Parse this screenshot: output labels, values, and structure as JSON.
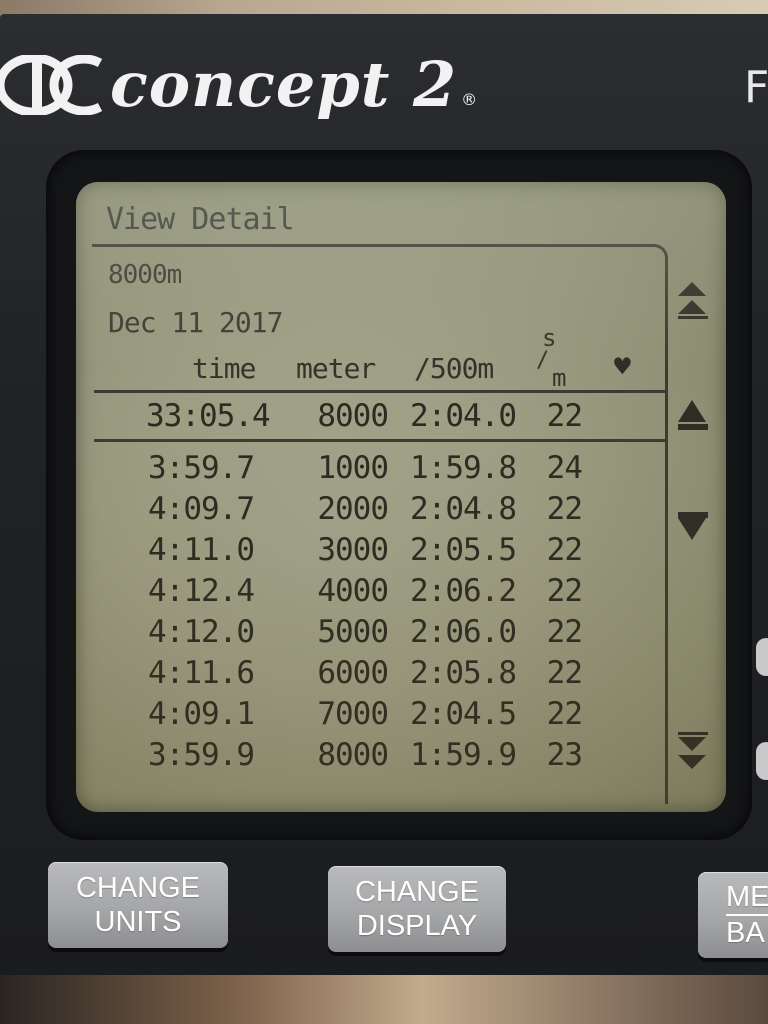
{
  "brand": {
    "name": "concept",
    "number": "2",
    "registered": "®",
    "right_edge_letter": "F"
  },
  "screen": {
    "title": "View Detail",
    "workout": "8000m",
    "date": "Dec 11 2017",
    "columns": {
      "time": "time",
      "meter": "meter",
      "pace": "/500m",
      "spm_top": "s",
      "spm_bottom": "m",
      "heart": "♥"
    },
    "total": {
      "time": "33:05.4",
      "meter": "8000",
      "pace": "2:04.0",
      "spm": "22"
    },
    "splits": [
      {
        "time": "3:59.7",
        "meter": "1000",
        "pace": "1:59.8",
        "spm": "24"
      },
      {
        "time": "4:09.7",
        "meter": "2000",
        "pace": "2:04.8",
        "spm": "22"
      },
      {
        "time": "4:11.0",
        "meter": "3000",
        "pace": "2:05.5",
        "spm": "22"
      },
      {
        "time": "4:12.4",
        "meter": "4000",
        "pace": "2:06.2",
        "spm": "22"
      },
      {
        "time": "4:12.0",
        "meter": "5000",
        "pace": "2:06.0",
        "spm": "22"
      },
      {
        "time": "4:11.6",
        "meter": "6000",
        "pace": "2:05.8",
        "spm": "22"
      },
      {
        "time": "4:09.1",
        "meter": "7000",
        "pace": "2:04.5",
        "spm": "22"
      },
      {
        "time": "3:59.9",
        "meter": "8000",
        "pace": "1:59.9",
        "spm": "23"
      }
    ]
  },
  "buttons": {
    "change_units": [
      "CHANGE",
      "UNITS"
    ],
    "change_display": [
      "CHANGE",
      "DISPLAY"
    ],
    "menu_back": [
      "ME",
      "BA"
    ]
  },
  "icons": {
    "scroll_top": "double-up-arrow-icon",
    "scroll_up": "up-arrow-icon",
    "scroll_down": "down-arrow-icon",
    "scroll_bottom": "double-down-arrow-icon"
  },
  "colors": {
    "lcd": "#9fa086",
    "lcd_text": "#2b2a22",
    "button": "#a5a6a8",
    "body": "#202225"
  }
}
